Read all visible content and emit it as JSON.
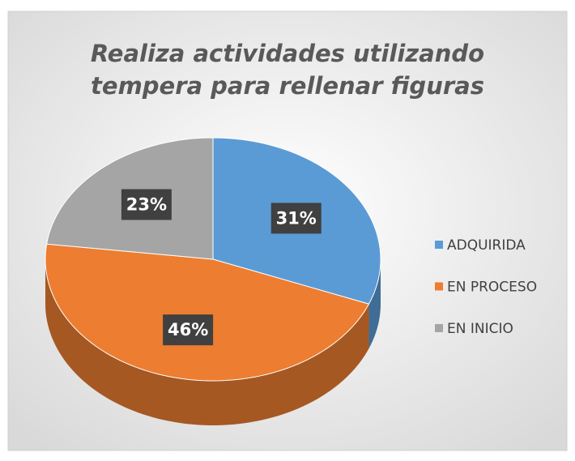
{
  "chart_data": {
    "type": "pie",
    "title": "Realiza actividades utilizando tempera para rellenar figuras",
    "categories": [
      "ADQUIRIDA",
      "EN PROCESO",
      "EN INICIO"
    ],
    "values": [
      31,
      46,
      23
    ],
    "value_labels": [
      "31%",
      "46%",
      "23%"
    ],
    "colors": [
      "#5b9bd5",
      "#ed7d31",
      "#a5a5a5"
    ],
    "legend": "right"
  }
}
